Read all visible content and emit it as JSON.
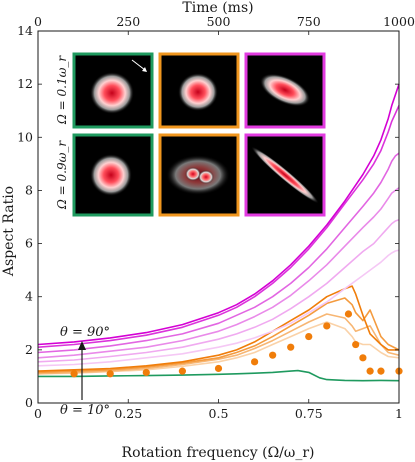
{
  "chart_data": {
    "type": "line",
    "xlabel": "Rotation frequency (Ω/ω_r)",
    "ylabel": "Aspect Ratio",
    "top_xlabel": "Time (ms)",
    "xlim": [
      0,
      1
    ],
    "ylim": [
      0,
      14
    ],
    "top_xlim": [
      0,
      1000
    ],
    "x_ticks": [
      0,
      0.25,
      0.5,
      0.75,
      1
    ],
    "x_tick_labels": [
      "0",
      "0.25",
      "0.5",
      "0.75",
      "1"
    ],
    "y_ticks": [
      0,
      2,
      4,
      6,
      8,
      10,
      12,
      14
    ],
    "y_tick_labels": [
      "0",
      "2",
      "4",
      "6",
      "8",
      "10",
      "12",
      "14"
    ],
    "top_ticks": [
      0,
      250,
      500,
      750,
      1000
    ],
    "top_tick_labels": [
      "0",
      "250",
      "500",
      "750",
      "1000"
    ],
    "annotations": {
      "theta_high": "θ = 90°",
      "theta_low": "θ = 10°",
      "row1_label": "Ω = 0.1ω_r",
      "row2_label": "Ω = 0.9ω_r"
    },
    "inset_frame_colors": [
      "#1f9a5f",
      "#f0961e",
      "#e23be0"
    ],
    "series": [
      {
        "color": "#d400d4",
        "x": [
          0,
          0.1,
          0.2,
          0.3,
          0.4,
          0.5,
          0.55,
          0.6,
          0.65,
          0.7,
          0.75,
          0.8,
          0.85,
          0.9,
          0.93,
          0.95,
          0.97,
          0.98,
          0.99,
          1.0
        ],
        "y": [
          2.2,
          2.3,
          2.45,
          2.65,
          2.95,
          3.4,
          3.7,
          4.1,
          4.6,
          5.2,
          5.9,
          6.7,
          7.6,
          8.6,
          9.3,
          9.9,
          10.7,
          11.2,
          11.6,
          12.0
        ]
      },
      {
        "color": "#db33db",
        "x": [
          0,
          0.1,
          0.2,
          0.3,
          0.4,
          0.5,
          0.55,
          0.6,
          0.65,
          0.7,
          0.75,
          0.8,
          0.85,
          0.9,
          0.93,
          0.95,
          0.97,
          0.98,
          0.99,
          1.0
        ],
        "y": [
          2.1,
          2.2,
          2.35,
          2.55,
          2.85,
          3.3,
          3.6,
          4.0,
          4.5,
          5.1,
          5.8,
          6.6,
          7.5,
          8.4,
          9.0,
          9.5,
          10.2,
          10.6,
          10.9,
          11.2
        ]
      },
      {
        "color": "#e266e2",
        "x": [
          0,
          0.1,
          0.2,
          0.3,
          0.4,
          0.5,
          0.55,
          0.6,
          0.65,
          0.7,
          0.75,
          0.8,
          0.85,
          0.9,
          0.93,
          0.95,
          0.97,
          0.98,
          0.99,
          1.0
        ],
        "y": [
          1.9,
          2.0,
          2.15,
          2.35,
          2.6,
          3.0,
          3.3,
          3.6,
          4.0,
          4.5,
          5.1,
          5.8,
          6.6,
          7.4,
          7.9,
          8.3,
          8.8,
          9.1,
          9.3,
          9.4
        ]
      },
      {
        "color": "#e98ae9",
        "x": [
          0,
          0.1,
          0.2,
          0.3,
          0.4,
          0.5,
          0.55,
          0.6,
          0.65,
          0.7,
          0.75,
          0.8,
          0.85,
          0.9,
          0.93,
          0.95,
          0.97,
          0.98,
          0.99,
          1.0
        ],
        "y": [
          1.7,
          1.8,
          1.95,
          2.1,
          2.35,
          2.7,
          2.95,
          3.25,
          3.6,
          4.05,
          4.6,
          5.2,
          5.9,
          6.6,
          7.0,
          7.3,
          7.7,
          7.9,
          8.0,
          8.1
        ]
      },
      {
        "color": "#f0aaf0",
        "x": [
          0,
          0.1,
          0.2,
          0.3,
          0.4,
          0.5,
          0.55,
          0.6,
          0.65,
          0.7,
          0.75,
          0.8,
          0.85,
          0.9,
          0.93,
          0.95,
          0.97,
          0.98,
          0.99,
          1.0
        ],
        "y": [
          1.55,
          1.62,
          1.75,
          1.9,
          2.1,
          2.4,
          2.6,
          2.85,
          3.15,
          3.55,
          4.0,
          4.5,
          5.1,
          5.7,
          6.0,
          6.3,
          6.6,
          6.75,
          6.85,
          6.9
        ]
      },
      {
        "color": "#f5c8f5",
        "x": [
          0,
          0.1,
          0.2,
          0.3,
          0.4,
          0.5,
          0.55,
          0.6,
          0.65,
          0.7,
          0.75,
          0.8,
          0.85,
          0.9,
          0.93,
          0.95,
          0.97,
          0.98,
          0.99,
          1.0
        ],
        "y": [
          1.4,
          1.45,
          1.55,
          1.7,
          1.85,
          2.1,
          2.25,
          2.45,
          2.7,
          3.0,
          3.4,
          3.8,
          4.3,
          4.8,
          5.1,
          5.3,
          5.55,
          5.65,
          5.72,
          5.75
        ]
      },
      {
        "color": "#f07d0a",
        "x": [
          0,
          0.1,
          0.2,
          0.3,
          0.4,
          0.5,
          0.55,
          0.6,
          0.65,
          0.7,
          0.75,
          0.8,
          0.85,
          0.87,
          0.88,
          0.9,
          0.92,
          0.95,
          0.97,
          1.0
        ],
        "y": [
          1.2,
          1.25,
          1.3,
          1.4,
          1.55,
          1.8,
          2.0,
          2.3,
          2.7,
          3.1,
          3.5,
          4.0,
          4.3,
          4.4,
          4.1,
          3.3,
          2.6,
          2.2,
          2.0,
          2.0
        ]
      },
      {
        "color": "#f49b3f",
        "x": [
          0,
          0.1,
          0.2,
          0.3,
          0.4,
          0.5,
          0.55,
          0.6,
          0.65,
          0.7,
          0.75,
          0.8,
          0.85,
          0.87,
          0.88,
          0.9,
          0.92,
          0.95,
          0.97,
          1.0
        ],
        "y": [
          1.15,
          1.2,
          1.25,
          1.35,
          1.5,
          1.7,
          1.9,
          2.15,
          2.5,
          2.9,
          3.3,
          3.75,
          3.95,
          3.7,
          3.4,
          3.1,
          3.5,
          2.5,
          2.2,
          2.0
        ]
      },
      {
        "color": "#f7b673",
        "x": [
          0,
          0.1,
          0.2,
          0.3,
          0.4,
          0.5,
          0.55,
          0.6,
          0.65,
          0.7,
          0.75,
          0.8,
          0.85,
          0.87,
          0.88,
          0.9,
          0.92,
          0.95,
          0.97,
          1.0
        ],
        "y": [
          1.1,
          1.15,
          1.2,
          1.3,
          1.45,
          1.65,
          1.8,
          2.05,
          2.35,
          2.7,
          3.05,
          3.35,
          3.2,
          2.9,
          2.7,
          2.8,
          2.9,
          2.2,
          1.9,
          1.8
        ]
      },
      {
        "color": "#fad2a8",
        "x": [
          0,
          0.1,
          0.2,
          0.3,
          0.4,
          0.5,
          0.55,
          0.6,
          0.65,
          0.7,
          0.75,
          0.8,
          0.85,
          0.87,
          0.88,
          0.9,
          0.92,
          0.95,
          0.97,
          1.0
        ],
        "y": [
          1.1,
          1.12,
          1.18,
          1.25,
          1.38,
          1.55,
          1.7,
          1.9,
          2.2,
          2.5,
          2.8,
          3.05,
          2.8,
          2.5,
          2.3,
          2.2,
          2.2,
          1.9,
          1.75,
          1.7
        ]
      },
      {
        "color": "#1f9a5f",
        "x": [
          0,
          0.1,
          0.2,
          0.3,
          0.4,
          0.5,
          0.55,
          0.6,
          0.65,
          0.7,
          0.72,
          0.75,
          0.78,
          0.8,
          0.85,
          0.9,
          0.95,
          1.0
        ],
        "y": [
          1.0,
          1.0,
          1.02,
          1.03,
          1.05,
          1.08,
          1.1,
          1.12,
          1.15,
          1.2,
          1.22,
          1.15,
          0.95,
          0.88,
          0.85,
          0.84,
          0.85,
          0.84
        ]
      }
    ],
    "points": {
      "color": "#f07d0a",
      "x": [
        0.1,
        0.2,
        0.3,
        0.4,
        0.5,
        0.6,
        0.65,
        0.7,
        0.75,
        0.8,
        0.86,
        0.88,
        0.9,
        0.92,
        0.95,
        1.0
      ],
      "y": [
        1.1,
        1.1,
        1.15,
        1.2,
        1.3,
        1.55,
        1.8,
        2.1,
        2.5,
        2.9,
        3.35,
        2.2,
        1.7,
        1.2,
        1.2,
        1.2
      ]
    }
  }
}
